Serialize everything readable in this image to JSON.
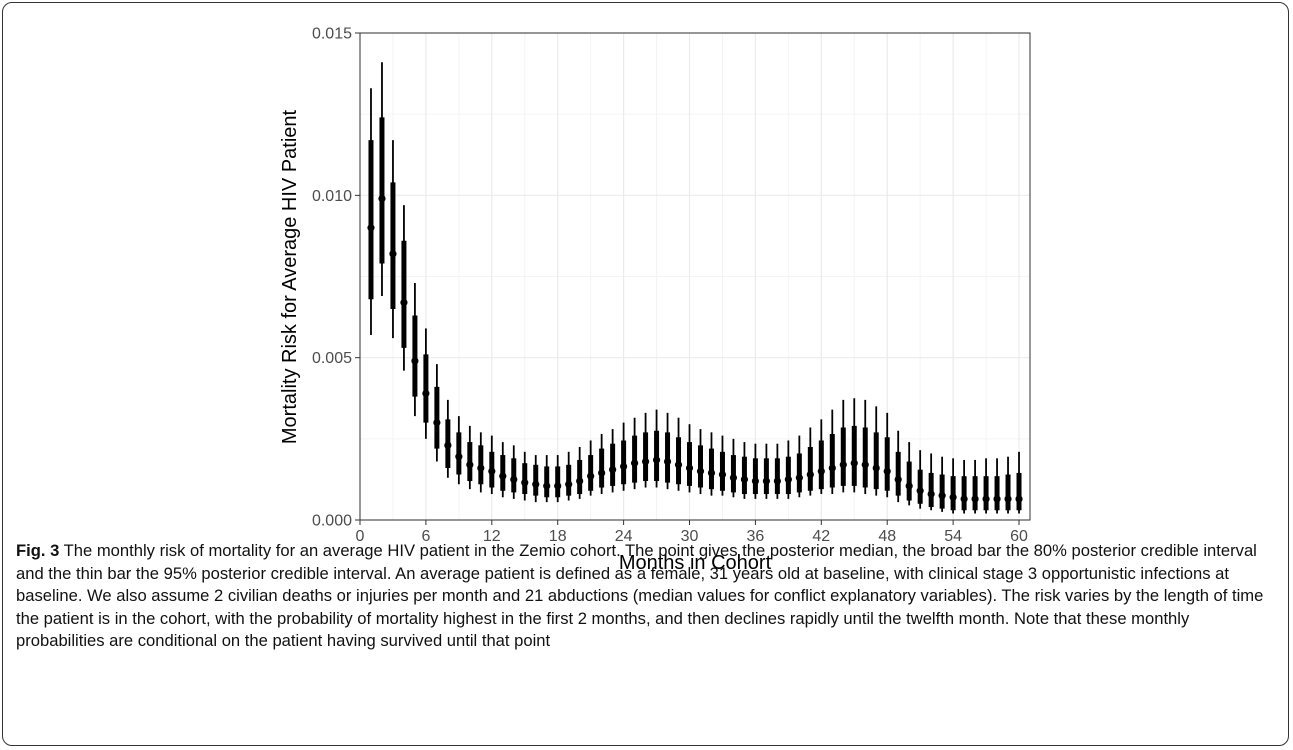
{
  "chart_data": {
    "type": "pointrange",
    "x_label": "Months in Cohort",
    "y_label": "Mortality Risk for Average HIV Patient",
    "caption_label": "Fig. 3",
    "caption": "The monthly risk of mortality for an average HIV patient in the Zemio cohort. The point gives the posterior median, the broad bar the 80% posterior credible interval and the thin bar the 95% posterior credible interval. An average patient is defined as a female, 31 years old at baseline, with clinical stage 3 opportunistic infections at baseline. We also assume 2 civilian deaths or injuries per month and 21 abductions (median values for conflict explanatory variables). The risk varies by the length of time the patient is in the cohort, with the probability of mortality highest in the first 2 months, and then declines rapidly until the twelfth month. Note that these monthly probabilities are conditional on the patient having survived until that point",
    "color": "#000000",
    "grid": true,
    "xlim": [
      0,
      61
    ],
    "xticks": [
      0,
      6,
      12,
      18,
      24,
      30,
      36,
      42,
      48,
      54,
      60
    ],
    "ylim": [
      0,
      0.015
    ],
    "yticks": [
      {
        "value": 0,
        "label": "0.000"
      },
      0.005,
      {
        "value": 0.01,
        "label": "0.010"
      },
      0.015
    ],
    "x": [
      1,
      2,
      3,
      4,
      5,
      6,
      7,
      8,
      9,
      10,
      11,
      12,
      13,
      14,
      15,
      16,
      17,
      18,
      19,
      20,
      21,
      22,
      23,
      24,
      25,
      26,
      27,
      28,
      29,
      30,
      31,
      32,
      33,
      34,
      35,
      36,
      37,
      38,
      39,
      40,
      41,
      42,
      43,
      44,
      45,
      46,
      47,
      48,
      49,
      50,
      51,
      52,
      53,
      54,
      55,
      56,
      57,
      58,
      59,
      60
    ],
    "median": [
      0.009,
      0.0099,
      0.0082,
      0.0067,
      0.0049,
      0.0039,
      0.003,
      0.0023,
      0.00195,
      0.0017,
      0.0016,
      0.0015,
      0.00135,
      0.00125,
      0.00115,
      0.0011,
      0.00105,
      0.00105,
      0.0011,
      0.0012,
      0.00135,
      0.00145,
      0.00155,
      0.00165,
      0.00175,
      0.0018,
      0.00185,
      0.0018,
      0.0017,
      0.0016,
      0.0015,
      0.00145,
      0.0014,
      0.0013,
      0.00125,
      0.0012,
      0.0012,
      0.0012,
      0.00125,
      0.0013,
      0.0014,
      0.0015,
      0.0016,
      0.0017,
      0.00175,
      0.0017,
      0.0016,
      0.0015,
      0.00125,
      0.00105,
      0.0009,
      0.0008,
      0.00075,
      0.0007,
      0.00065,
      0.00065,
      0.00065,
      0.00065,
      0.00065,
      0.00065
    ],
    "lower_80": [
      0.0068,
      0.0079,
      0.0065,
      0.0053,
      0.0038,
      0.003,
      0.0022,
      0.0016,
      0.0014,
      0.0012,
      0.0011,
      0.001,
      0.0009,
      0.00085,
      0.0008,
      0.00075,
      0.0007,
      0.0007,
      0.00075,
      0.0008,
      0.0009,
      0.001,
      0.00105,
      0.0011,
      0.00115,
      0.0012,
      0.0012,
      0.00115,
      0.0011,
      0.00105,
      0.001,
      0.00095,
      0.0009,
      0.00085,
      0.0008,
      0.0008,
      0.0008,
      0.0008,
      0.0008,
      0.00085,
      0.0009,
      0.00095,
      0.001,
      0.00105,
      0.00105,
      0.001,
      0.00095,
      0.0009,
      0.00075,
      0.0006,
      0.0005,
      0.0004,
      0.00035,
      0.0003,
      0.0003,
      0.0003,
      0.0003,
      0.0003,
      0.0003,
      0.0003
    ],
    "upper_80": [
      0.0117,
      0.0124,
      0.0104,
      0.0086,
      0.0063,
      0.0051,
      0.0041,
      0.0031,
      0.0027,
      0.0024,
      0.0023,
      0.0021,
      0.002,
      0.0019,
      0.00175,
      0.0017,
      0.00165,
      0.00165,
      0.0017,
      0.00185,
      0.002,
      0.0022,
      0.00235,
      0.00245,
      0.0026,
      0.0027,
      0.00275,
      0.0027,
      0.00255,
      0.0024,
      0.0023,
      0.0022,
      0.0021,
      0.002,
      0.00195,
      0.0019,
      0.0019,
      0.0019,
      0.00195,
      0.00205,
      0.00225,
      0.00245,
      0.00265,
      0.00285,
      0.0029,
      0.00285,
      0.0027,
      0.00255,
      0.0021,
      0.0018,
      0.00155,
      0.00145,
      0.0014,
      0.00135,
      0.00135,
      0.00135,
      0.00135,
      0.00135,
      0.0014,
      0.00145
    ],
    "lower_95": [
      0.0057,
      0.0069,
      0.0056,
      0.0046,
      0.0032,
      0.0025,
      0.0018,
      0.0013,
      0.0011,
      0.00095,
      0.00085,
      0.0008,
      0.0007,
      0.00065,
      0.0006,
      0.00055,
      0.00055,
      0.00055,
      0.0006,
      0.00065,
      0.00075,
      0.0008,
      0.00085,
      0.0009,
      0.00095,
      0.001,
      0.001,
      0.00095,
      0.0009,
      0.00085,
      0.0008,
      0.00075,
      0.00075,
      0.0007,
      0.00065,
      0.00065,
      0.00065,
      0.00065,
      0.00065,
      0.0007,
      0.00075,
      0.0008,
      0.0008,
      0.00085,
      0.00085,
      0.0008,
      0.00075,
      0.0007,
      0.00055,
      0.00045,
      0.00035,
      0.0003,
      0.00025,
      0.0002,
      0.0002,
      0.0002,
      0.0002,
      0.0002,
      0.0002,
      0.0002
    ],
    "upper_95": [
      0.0133,
      0.0141,
      0.0117,
      0.0097,
      0.0073,
      0.0059,
      0.0048,
      0.0037,
      0.0032,
      0.0029,
      0.0027,
      0.0026,
      0.0024,
      0.0023,
      0.0021,
      0.002,
      0.002,
      0.002,
      0.0021,
      0.00225,
      0.00245,
      0.00265,
      0.0028,
      0.003,
      0.00315,
      0.0033,
      0.0034,
      0.0033,
      0.00315,
      0.00295,
      0.0028,
      0.0027,
      0.0026,
      0.0025,
      0.0024,
      0.00235,
      0.00235,
      0.00235,
      0.00245,
      0.0026,
      0.00285,
      0.0031,
      0.0034,
      0.0037,
      0.00375,
      0.0037,
      0.0035,
      0.0033,
      0.00275,
      0.0024,
      0.00215,
      0.00205,
      0.00195,
      0.0019,
      0.00185,
      0.00185,
      0.0019,
      0.0019,
      0.00195,
      0.0021
    ]
  }
}
